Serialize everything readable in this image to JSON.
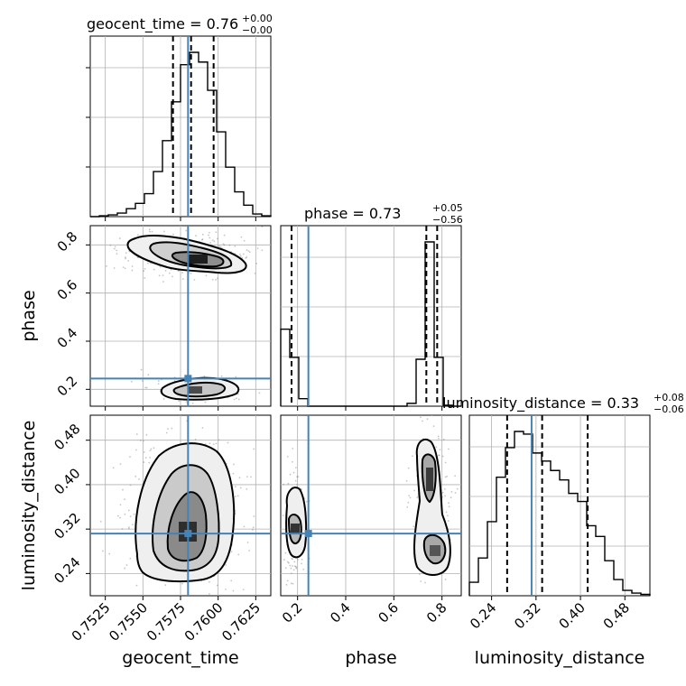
{
  "chart_data": {
    "type": "corner",
    "grid": true,
    "truth_color": "#4682b4",
    "hist_color": "#000000",
    "parameters": [
      {
        "name": "geocent_time",
        "label": "geocent_time",
        "range": [
          0.7515,
          0.7635
        ],
        "ticks": [
          0.7525,
          0.755,
          0.7575,
          0.76,
          0.7625
        ],
        "tick_labels": [
          "0.7525",
          "0.7550",
          "0.7575",
          "0.7600",
          "0.7625"
        ],
        "truth": 0.758
      },
      {
        "name": "phase",
        "label": "phase",
        "range": [
          0.13,
          0.88
        ],
        "ticks": [
          0.2,
          0.4,
          0.6,
          0.8
        ],
        "tick_labels": [
          "0.2",
          "0.4",
          "0.6",
          "0.8"
        ],
        "truth": 0.245
      },
      {
        "name": "luminosity_distance",
        "label": "luminosity_distance",
        "range": [
          0.2,
          0.525
        ],
        "ticks": [
          0.24,
          0.32,
          0.4,
          0.48
        ],
        "tick_labels": [
          "0.24",
          "0.32",
          "0.40",
          "0.48"
        ],
        "truth": 0.312
      }
    ],
    "titles": [
      {
        "name": "geocent_time",
        "value": "0.76",
        "upper": "+0.00",
        "lower": "−0.00"
      },
      {
        "name": "phase",
        "value": "0.73",
        "upper": "+0.05",
        "lower": "−0.56"
      },
      {
        "name": "luminosity_distance",
        "value": "0.33",
        "upper": "+0.08",
        "lower": "−0.06"
      }
    ],
    "quantiles": {
      "geocent_time": [
        0.757,
        0.7582,
        0.7597
      ],
      "phase": [
        0.175,
        0.735,
        0.78
      ],
      "luminosity_distance": [
        0.268,
        0.331,
        0.413
      ]
    },
    "histograms": {
      "geocent_time": {
        "edges": [
          0.7515,
          0.7521,
          0.7527,
          0.7533,
          0.7539,
          0.7545,
          0.7551,
          0.7557,
          0.7563,
          0.7569,
          0.7575,
          0.7581,
          0.7587,
          0.7593,
          0.7599,
          0.7605,
          0.7611,
          0.7617,
          0.7623,
          0.7629,
          0.7635
        ],
        "counts": [
          0,
          1,
          2,
          4,
          9,
          15,
          26,
          51,
          86,
          130,
          172,
          186,
          175,
          143,
          96,
          56,
          28,
          13,
          3,
          1
        ]
      },
      "phase": {
        "edges": [
          0.13,
          0.1675,
          0.205,
          0.2425,
          0.28,
          0.3175,
          0.355,
          0.3925,
          0.43,
          0.4675,
          0.505,
          0.5425,
          0.58,
          0.6175,
          0.655,
          0.6925,
          0.73,
          0.7675,
          0.805,
          0.8425,
          0.88
        ],
        "counts": [
          82,
          52,
          8,
          0,
          0,
          0,
          0,
          0,
          0,
          0,
          0,
          0,
          0,
          0,
          3,
          50,
          175,
          52,
          1,
          0
        ]
      },
      "luminosity_distance": {
        "edges": [
          0.2,
          0.21625,
          0.2325,
          0.24875,
          0.265,
          0.28125,
          0.2975,
          0.31375,
          0.33,
          0.34625,
          0.3625,
          0.37875,
          0.395,
          0.41125,
          0.4275,
          0.44375,
          0.46,
          0.47625,
          0.4925,
          0.50875,
          0.525
        ],
        "counts": [
          10,
          28,
          55,
          88,
          110,
          122,
          120,
          106,
          100,
          93,
          86,
          76,
          70,
          52,
          44,
          26,
          12,
          4,
          2,
          1
        ]
      }
    }
  }
}
